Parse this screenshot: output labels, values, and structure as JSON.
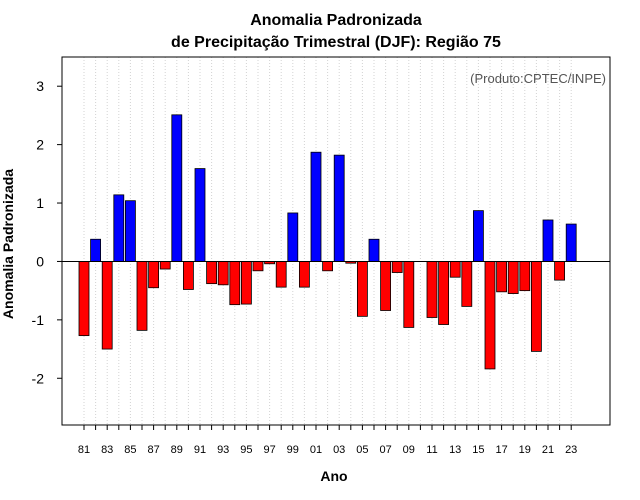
{
  "chart_data": {
    "type": "bar",
    "title": "Anomalia Padronizada",
    "subtitle": "de Precipitação Trimestral (DJF): Região 75",
    "xlabel": "Ano",
    "ylabel": "Anomalia Padronizada",
    "annotation": "(Produto:CPTEC/INPE)",
    "ylim": [
      -2.8,
      3.5
    ],
    "yticks": [
      "-2",
      "-1",
      "0",
      "1",
      "2",
      "3"
    ],
    "categories": [
      "81",
      "82",
      "83",
      "84",
      "85",
      "86",
      "87",
      "88",
      "89",
      "90",
      "91",
      "92",
      "93",
      "94",
      "95",
      "96",
      "97",
      "98",
      "99",
      "00",
      "01",
      "02",
      "03",
      "04",
      "05",
      "06",
      "07",
      "08",
      "09",
      "10",
      "11",
      "12",
      "13",
      "14",
      "15",
      "16",
      "17",
      "18",
      "19",
      "20",
      "21",
      "22",
      "23"
    ],
    "xtick_labels": [
      "81",
      "83",
      "85",
      "87",
      "89",
      "91",
      "93",
      "95",
      "97",
      "99",
      "01",
      "03",
      "05",
      "07",
      "09",
      "11",
      "13",
      "15",
      "17",
      "19",
      "21",
      "23"
    ],
    "values": [
      -1.27,
      0.38,
      -1.5,
      1.14,
      1.04,
      -1.18,
      -0.45,
      -0.13,
      2.51,
      -0.48,
      1.59,
      -0.38,
      -0.4,
      -0.74,
      -0.73,
      -0.16,
      -0.04,
      -0.44,
      0.83,
      -0.44,
      1.87,
      -0.16,
      1.82,
      -0.03,
      -0.94,
      0.38,
      -0.84,
      -0.19,
      -1.13,
      0.0,
      -0.96,
      -1.08,
      -0.27,
      -0.77,
      0.87,
      -1.84,
      -0.52,
      -0.55,
      -0.5,
      -1.54,
      0.71,
      -0.32,
      0.64
    ],
    "colors": {
      "positive": "#0000ff",
      "negative": "#ff0000",
      "grid": "#d3d3d3",
      "frame": "#000000"
    },
    "grid": true
  }
}
